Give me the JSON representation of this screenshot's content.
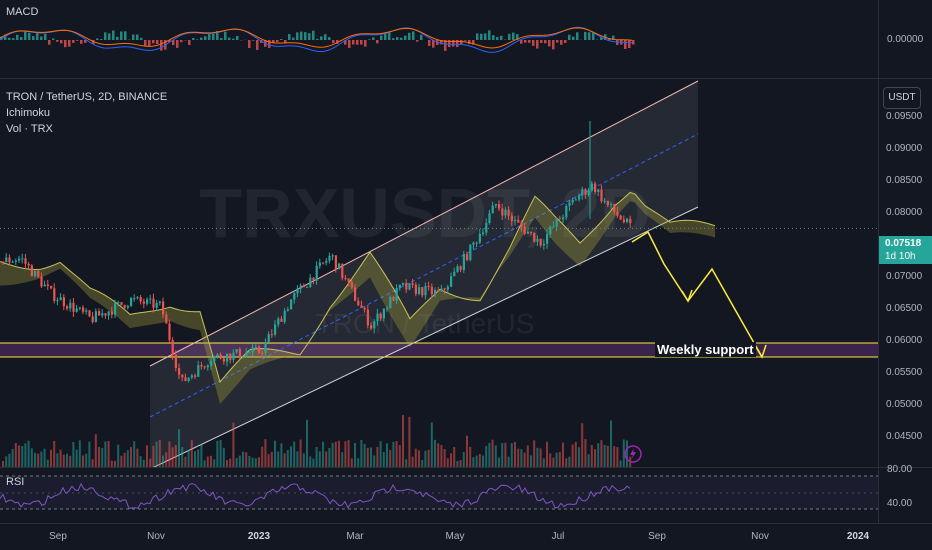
{
  "macd": {
    "label": "MACD",
    "tick": "0.00000"
  },
  "main": {
    "title": "TRON / TetherUS, 2D, BINANCE",
    "ichimoku": "Ichimoku",
    "volume": "Vol · TRX",
    "watermark_symbol": "TRXUSDT, 2D",
    "watermark_name": "TRON / TetherUS",
    "currency_button": "USDT",
    "price_ticks": [
      "0.09500",
      "0.09000",
      "0.08500",
      "0.08000",
      "0.07000",
      "0.06500",
      "0.06000",
      "0.05500",
      "0.05000",
      "0.04500"
    ],
    "last_price": "0.07518",
    "countdown": "1d 10h",
    "annotation": "Weekly support"
  },
  "rsi": {
    "label": "RSI",
    "ticks": [
      "80.00",
      "40.00"
    ]
  },
  "xaxis": [
    "Sep",
    "Nov",
    "2023",
    "Mar",
    "May",
    "Jul",
    "Sep",
    "Nov",
    "2024"
  ],
  "colors": {
    "up": "#26a69a",
    "down": "#ef5350",
    "background": "#131722",
    "annotation": "#ffeb3b",
    "support_band": "#4a2a5a",
    "price_tag": "#26a69a"
  }
}
